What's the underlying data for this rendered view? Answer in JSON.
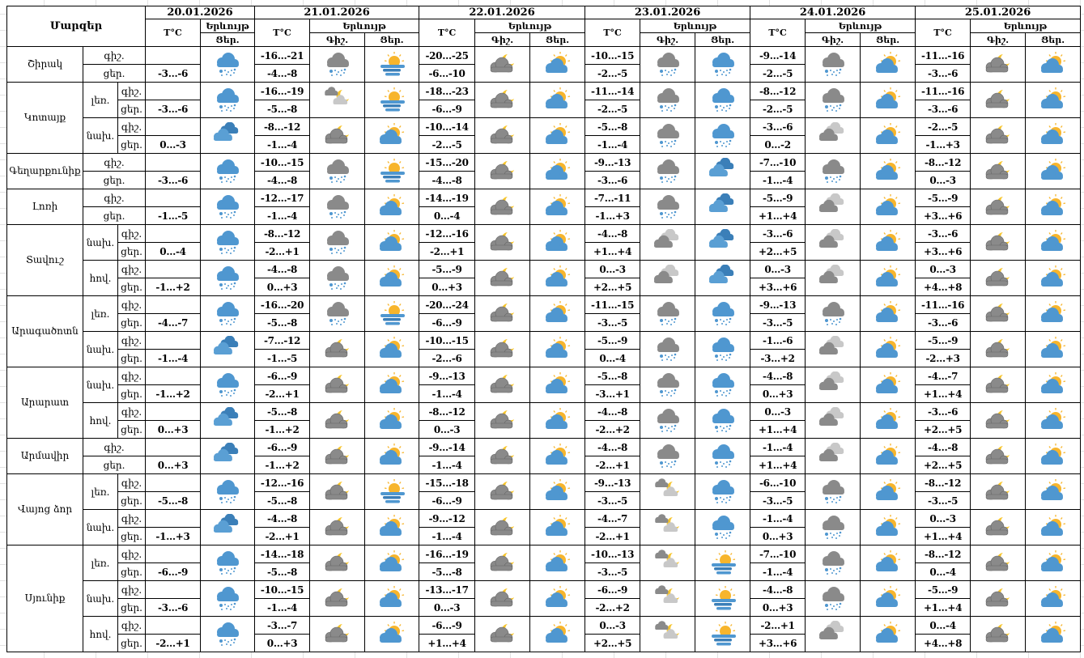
{
  "header": {
    "regions_label": "Մարզեր",
    "temp_label": "T°C",
    "phenomenon_label": "Երևույթ",
    "night_label": "Գիշ.",
    "day_label": "Ցեր."
  },
  "dates": [
    "20.01.2026",
    "21.01.2026",
    "22.01.2026",
    "23.01.2026",
    "24.01.2026",
    "25.01.2026"
  ],
  "row_labels": {
    "night": "գիշ.",
    "day": "ցեր."
  },
  "icon_legend": {
    "snow-blue": "blue cloud with snow",
    "snow-gray": "gray cloud with snow",
    "fog-sun": "sun with fog",
    "cloud-moon": "gray cloud with moon",
    "sun-cloud": "sun behind blue cloud",
    "clouds-blue": "blue clouds",
    "clouds-gray": "gray clouds",
    "moon-clouds": "moon with gray clouds"
  },
  "colors": {
    "blue": "#4f97d0",
    "gray": "#8a8a8a",
    "sun": "#f7b52c"
  },
  "regions": [
    {
      "name": "Շիրակ",
      "groups": [
        {
          "sub": "",
          "temps": [
            [
              "",
              "-3...-6"
            ],
            [
              "-16...-21",
              "-4...-8"
            ],
            [
              "-20...-25",
              "-6...-10"
            ],
            [
              "-10...-15",
              "-2...-5"
            ],
            [
              "-9...-14",
              "-2...-5"
            ],
            [
              "-11...-16",
              "-3...-6"
            ]
          ],
          "icons": [
            [
              "snow-blue"
            ],
            [
              "snow-gray",
              "fog-sun"
            ],
            [
              "cloud-moon",
              "sun-cloud"
            ],
            [
              "snow-gray",
              "snow-blue"
            ],
            [
              "snow-gray",
              "sun-cloud"
            ],
            [
              "cloud-moon",
              "sun-cloud"
            ]
          ]
        }
      ]
    },
    {
      "name": "Կոտայք",
      "groups": [
        {
          "sub": "լեռ.",
          "temps": [
            [
              "",
              "-3...-6"
            ],
            [
              "-16...-19",
              "-5...-8"
            ],
            [
              "-18...-23",
              "-6...-9"
            ],
            [
              "-11...-14",
              "-2...-5"
            ],
            [
              "-8...-12",
              "-2...-5"
            ],
            [
              "-11...-16",
              "-3...-6"
            ]
          ],
          "icons": [
            [
              "snow-blue"
            ],
            [
              "moon-clouds",
              "fog-sun"
            ],
            [
              "cloud-moon",
              "sun-cloud"
            ],
            [
              "snow-gray",
              "snow-blue"
            ],
            [
              "snow-gray",
              "sun-cloud"
            ],
            [
              "cloud-moon",
              "sun-cloud"
            ]
          ]
        },
        {
          "sub": "նախ.",
          "temps": [
            [
              "",
              "0...-3"
            ],
            [
              "-8...-12",
              "-1...-4"
            ],
            [
              "-10...-14",
              "-2...-5"
            ],
            [
              "-5...-8",
              "-1...-4"
            ],
            [
              "-3...-6",
              "0...-2"
            ],
            [
              "-2...-5",
              "-1...+3"
            ]
          ],
          "icons": [
            [
              "clouds-blue"
            ],
            [
              "cloud-moon",
              "sun-cloud"
            ],
            [
              "cloud-moon",
              "sun-cloud"
            ],
            [
              "snow-gray",
              "snow-blue"
            ],
            [
              "clouds-gray",
              "sun-cloud"
            ],
            [
              "cloud-moon",
              "sun-cloud"
            ]
          ]
        }
      ]
    },
    {
      "name": "Գեղարքունիք",
      "groups": [
        {
          "sub": "",
          "temps": [
            [
              "",
              "-3...-6"
            ],
            [
              "-10...-15",
              "-4...-8"
            ],
            [
              "-15...-20",
              "-4...-8"
            ],
            [
              "-9...-13",
              "-3...-6"
            ],
            [
              "-7...-10",
              "-1...-4"
            ],
            [
              "-8...-12",
              "0...-3"
            ]
          ],
          "icons": [
            [
              "snow-blue"
            ],
            [
              "snow-gray",
              "fog-sun"
            ],
            [
              "cloud-moon",
              "sun-cloud"
            ],
            [
              "snow-gray",
              "clouds-blue"
            ],
            [
              "snow-gray",
              "sun-cloud"
            ],
            [
              "cloud-moon",
              "sun-cloud"
            ]
          ]
        }
      ]
    },
    {
      "name": "Լոռի",
      "groups": [
        {
          "sub": "",
          "temps": [
            [
              "",
              "-1...-5"
            ],
            [
              "-12...-17",
              "-1...-4"
            ],
            [
              "-14...-19",
              "0...-4"
            ],
            [
              "-7...-11",
              "-1...+3"
            ],
            [
              "-5...-9",
              "+1...+4"
            ],
            [
              "-5...-9",
              "+3...+6"
            ]
          ],
          "icons": [
            [
              "snow-blue"
            ],
            [
              "snow-gray",
              "sun-cloud"
            ],
            [
              "cloud-moon",
              "sun-cloud"
            ],
            [
              "snow-gray",
              "clouds-blue"
            ],
            [
              "clouds-gray",
              "sun-cloud"
            ],
            [
              "cloud-moon",
              "sun-cloud"
            ]
          ]
        }
      ]
    },
    {
      "name": "Տավուշ",
      "groups": [
        {
          "sub": "նախ.",
          "temps": [
            [
              "",
              "0...-4"
            ],
            [
              "-8...-12",
              "-2...+1"
            ],
            [
              "-12...-16",
              "-2...+1"
            ],
            [
              "-4...-8",
              "+1...+4"
            ],
            [
              "-3...-6",
              "+2...+5"
            ],
            [
              "-3...-6",
              "+3...+6"
            ]
          ],
          "icons": [
            [
              "snow-blue"
            ],
            [
              "snow-gray",
              "sun-cloud"
            ],
            [
              "cloud-moon",
              "sun-cloud"
            ],
            [
              "clouds-gray",
              "clouds-blue"
            ],
            [
              "clouds-gray",
              "sun-cloud"
            ],
            [
              "cloud-moon",
              "sun-cloud"
            ]
          ]
        },
        {
          "sub": "հով.",
          "temps": [
            [
              "",
              "-1...+2"
            ],
            [
              "-4...-8",
              "0...+3"
            ],
            [
              "-5...-9",
              "0...+3"
            ],
            [
              "0...-3",
              "+2...+5"
            ],
            [
              "0...-3",
              "+3...+6"
            ],
            [
              "0...-3",
              "+4...+8"
            ]
          ],
          "icons": [
            [
              "snow-blue"
            ],
            [
              "snow-gray",
              "sun-cloud"
            ],
            [
              "cloud-moon",
              "sun-cloud"
            ],
            [
              "clouds-gray",
              "clouds-blue"
            ],
            [
              "clouds-gray",
              "sun-cloud"
            ],
            [
              "cloud-moon",
              "sun-cloud"
            ]
          ]
        }
      ]
    },
    {
      "name": "Արագածոտն",
      "groups": [
        {
          "sub": "լեռ.",
          "temps": [
            [
              "",
              "-4...-7"
            ],
            [
              "-16...-20",
              "-5...-8"
            ],
            [
              "-20...-24",
              "-6...-9"
            ],
            [
              "-11...-15",
              "-3...-5"
            ],
            [
              "-9...-13",
              "-3...-5"
            ],
            [
              "-11...-16",
              "-3...-6"
            ]
          ],
          "icons": [
            [
              "snow-blue"
            ],
            [
              "snow-gray",
              "fog-sun"
            ],
            [
              "cloud-moon",
              "sun-cloud"
            ],
            [
              "snow-gray",
              "snow-blue"
            ],
            [
              "snow-gray",
              "sun-cloud"
            ],
            [
              "cloud-moon",
              "sun-cloud"
            ]
          ]
        },
        {
          "sub": "նախ.",
          "temps": [
            [
              "",
              "-1...-4"
            ],
            [
              "-7...-12",
              "-1...-5"
            ],
            [
              "-10...-15",
              "-2...-6"
            ],
            [
              "-5...-9",
              "0...-4"
            ],
            [
              "-1...-6",
              "-3...+2"
            ],
            [
              "-5...-9",
              "-2...+3"
            ]
          ],
          "icons": [
            [
              "clouds-blue"
            ],
            [
              "cloud-moon",
              "sun-cloud"
            ],
            [
              "cloud-moon",
              "sun-cloud"
            ],
            [
              "snow-gray",
              "snow-blue"
            ],
            [
              "clouds-gray",
              "sun-cloud"
            ],
            [
              "cloud-moon",
              "sun-cloud"
            ]
          ]
        }
      ]
    },
    {
      "name": "Արարատ",
      "groups": [
        {
          "sub": "նախ.",
          "temps": [
            [
              "",
              "-1...+2"
            ],
            [
              "-6...-9",
              "-2...+1"
            ],
            [
              "-9...-13",
              "-1...-4"
            ],
            [
              "-5...-8",
              "-3...+1"
            ],
            [
              "-4...-8",
              "0...+3"
            ],
            [
              "-4...-7",
              "+1...+4"
            ]
          ],
          "icons": [
            [
              "snow-blue"
            ],
            [
              "cloud-moon",
              "sun-cloud"
            ],
            [
              "cloud-moon",
              "sun-cloud"
            ],
            [
              "snow-gray",
              "snow-blue"
            ],
            [
              "clouds-gray",
              "sun-cloud"
            ],
            [
              "cloud-moon",
              "sun-cloud"
            ]
          ]
        },
        {
          "sub": "հով.",
          "temps": [
            [
              "",
              "0...+3"
            ],
            [
              "-5...-8",
              "-1...+2"
            ],
            [
              "-8...-12",
              "0...-3"
            ],
            [
              "-4...-8",
              "-2...+2"
            ],
            [
              "0...-3",
              "+1...+4"
            ],
            [
              "-3...-6",
              "+2...+5"
            ]
          ],
          "icons": [
            [
              "clouds-blue"
            ],
            [
              "cloud-moon",
              "sun-cloud"
            ],
            [
              "cloud-moon",
              "sun-cloud"
            ],
            [
              "snow-gray",
              "snow-blue"
            ],
            [
              "clouds-gray",
              "sun-cloud"
            ],
            [
              "cloud-moon",
              "sun-cloud"
            ]
          ]
        }
      ]
    },
    {
      "name": "Արմավիր",
      "groups": [
        {
          "sub": "",
          "temps": [
            [
              "",
              "0...+3"
            ],
            [
              "-6...-9",
              "-1...+2"
            ],
            [
              "-9...-14",
              "-1...-4"
            ],
            [
              "-4...-8",
              "-2...+1"
            ],
            [
              "-1...-4",
              "+1...+4"
            ],
            [
              "-4...-8",
              "+2...+5"
            ]
          ],
          "icons": [
            [
              "clouds-blue"
            ],
            [
              "cloud-moon",
              "sun-cloud"
            ],
            [
              "cloud-moon",
              "sun-cloud"
            ],
            [
              "snow-gray",
              "snow-blue"
            ],
            [
              "clouds-gray",
              "sun-cloud"
            ],
            [
              "cloud-moon",
              "sun-cloud"
            ]
          ]
        }
      ]
    },
    {
      "name": "Վայոց ձոր",
      "groups": [
        {
          "sub": "լեռ.",
          "temps": [
            [
              "",
              "-5...-8"
            ],
            [
              "-12...-16",
              "-5...-8"
            ],
            [
              "-15...-18",
              "-6...-9"
            ],
            [
              "-9...-13",
              "-3...-5"
            ],
            [
              "-6...-10",
              "-3...-5"
            ],
            [
              "-8...-12",
              "-3...-5"
            ]
          ],
          "icons": [
            [
              "snow-blue"
            ],
            [
              "cloud-moon",
              "fog-sun"
            ],
            [
              "cloud-moon",
              "sun-cloud"
            ],
            [
              "moon-clouds",
              "snow-blue"
            ],
            [
              "snow-gray",
              "sun-cloud"
            ],
            [
              "cloud-moon",
              "sun-cloud"
            ]
          ]
        },
        {
          "sub": "նախ.",
          "temps": [
            [
              "",
              "-1...+3"
            ],
            [
              "-4...-8",
              "-2...+1"
            ],
            [
              "-9...-12",
              "-1...-4"
            ],
            [
              "-4...-7",
              "-2...+1"
            ],
            [
              "-1...-4",
              "0...+3"
            ],
            [
              "0...-3",
              "+1...+4"
            ]
          ],
          "icons": [
            [
              "clouds-blue"
            ],
            [
              "cloud-moon",
              "sun-cloud"
            ],
            [
              "cloud-moon",
              "sun-cloud"
            ],
            [
              "moon-clouds",
              "snow-blue"
            ],
            [
              "snow-gray",
              "sun-cloud"
            ],
            [
              "cloud-moon",
              "sun-cloud"
            ]
          ]
        }
      ]
    },
    {
      "name": "Սյունիք",
      "groups": [
        {
          "sub": "լեռ.",
          "temps": [
            [
              "",
              "-6...-9"
            ],
            [
              "-14...-18",
              "-5...-8"
            ],
            [
              "-16...-19",
              "-5...-8"
            ],
            [
              "-10...-13",
              "-3...-5"
            ],
            [
              "-7...-10",
              "-1...-4"
            ],
            [
              "-8...-12",
              "0...-4"
            ]
          ],
          "icons": [
            [
              "snow-blue"
            ],
            [
              "cloud-moon",
              "sun-cloud"
            ],
            [
              "cloud-moon",
              "sun-cloud"
            ],
            [
              "moon-clouds",
              "fog-sun"
            ],
            [
              "snow-gray",
              "sun-cloud"
            ],
            [
              "cloud-moon",
              "sun-cloud"
            ]
          ]
        },
        {
          "sub": "նախ.",
          "temps": [
            [
              "",
              "-3...-6"
            ],
            [
              "-10...-15",
              "-1...-4"
            ],
            [
              "-13...-17",
              "0...-3"
            ],
            [
              "-6...-9",
              "-2...+2"
            ],
            [
              "-4...-8",
              "0...+3"
            ],
            [
              "-5...-9",
              "+1...+4"
            ]
          ],
          "icons": [
            [
              "snow-blue"
            ],
            [
              "cloud-moon",
              "sun-cloud"
            ],
            [
              "cloud-moon",
              "sun-cloud"
            ],
            [
              "moon-clouds",
              "fog-sun"
            ],
            [
              "snow-gray",
              "sun-cloud"
            ],
            [
              "cloud-moon",
              "sun-cloud"
            ]
          ]
        },
        {
          "sub": "հով.",
          "temps": [
            [
              "",
              "-2...+1"
            ],
            [
              "-3...-7",
              "0...+3"
            ],
            [
              "-6...-9",
              "+1...+4"
            ],
            [
              "0...-3",
              "+2...+5"
            ],
            [
              "-2...+1",
              "+3...+6"
            ],
            [
              "0...-4",
              "+4...+8"
            ]
          ],
          "icons": [
            [
              "snow-blue"
            ],
            [
              "cloud-moon",
              "sun-cloud"
            ],
            [
              "cloud-moon",
              "sun-cloud"
            ],
            [
              "moon-clouds",
              "fog-sun"
            ],
            [
              "clouds-gray",
              "sun-cloud"
            ],
            [
              "cloud-moon",
              "sun-cloud"
            ]
          ]
        }
      ]
    }
  ]
}
